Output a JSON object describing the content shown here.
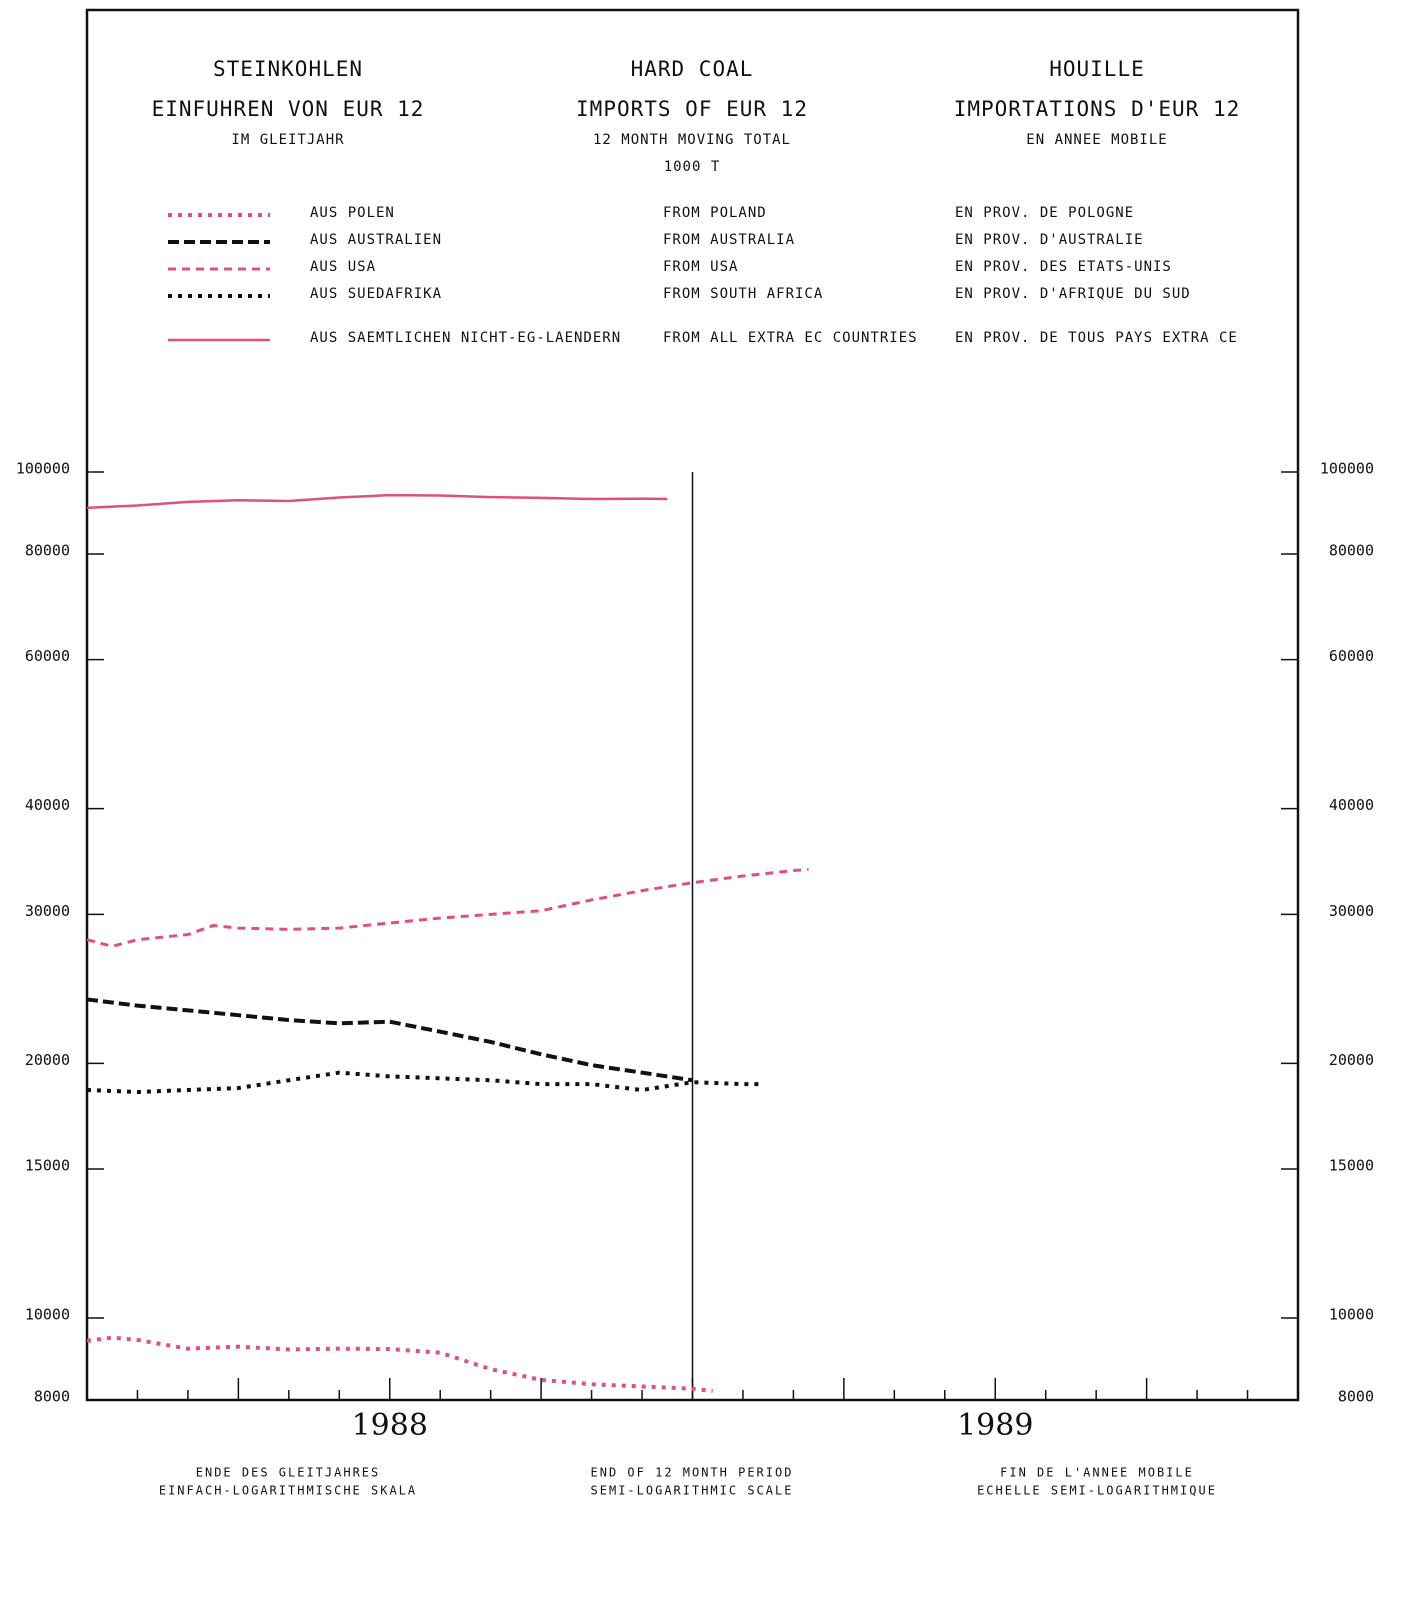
{
  "chart_data": {
    "type": "line",
    "header": [
      [
        "STEINKOHLEN",
        "EINFUHREN VON EUR 12",
        "IM GLEITJAHR"
      ],
      [
        "HARD COAL",
        "IMPORTS OF EUR 12",
        "12 MONTH MOVING TOTAL",
        "1000 T"
      ],
      [
        "HOUILLE",
        "IMPORTATIONS D'EUR 12",
        "EN ANNEE MOBILE"
      ]
    ],
    "footer": [
      [
        "ENDE DES GLEITJAHRES",
        "EINFACH-LOGARITHMISCHE SKALA"
      ],
      [
        "END OF 12 MONTH PERIOD",
        "SEMI-LOGARITHMIC SCALE"
      ],
      [
        "FIN DE L'ANNEE MOBILE",
        "ECHELLE SEMI-LOGARITHMIQUE"
      ]
    ],
    "log_scale": true,
    "xlim": [
      0,
      24
    ],
    "xticks": [
      1,
      2,
      3,
      4,
      5,
      6,
      7,
      8,
      9,
      10,
      11,
      12,
      13,
      14,
      15,
      16,
      17,
      18,
      19,
      20,
      21,
      22,
      23
    ],
    "year_labels": [
      {
        "value": 6,
        "label": "1988"
      },
      {
        "value": 18,
        "label": "1989"
      }
    ],
    "vline_x": 12,
    "ylim": [
      8000,
      100000
    ],
    "yticks": [
      8000,
      10000,
      15000,
      20000,
      30000,
      40000,
      60000,
      80000,
      100000
    ],
    "series": [
      {
        "names": [
          "AUS POLEN",
          "FROM POLAND",
          "EN PROV. DE POLOGNE"
        ],
        "color": "#e0507a",
        "style": "dotted",
        "x": [
          0,
          0.5,
          1,
          2,
          3,
          4,
          5,
          6,
          7,
          8,
          9,
          10,
          11,
          12,
          12.4
        ],
        "values": [
          9400,
          9480,
          9420,
          9200,
          9250,
          9180,
          9200,
          9190,
          9100,
          8700,
          8450,
          8350,
          8300,
          8250,
          8200
        ]
      },
      {
        "names": [
          "AUS AUSTRALIEN",
          "FROM AUSTRALIA",
          "EN PROV. D'AUSTRALIE"
        ],
        "color": "#111111",
        "style": "dashed",
        "x": [
          0,
          1,
          2,
          3,
          4,
          5,
          6,
          7,
          8,
          9,
          10,
          11,
          12
        ],
        "values": [
          23800,
          23400,
          23100,
          22800,
          22500,
          22300,
          22400,
          21800,
          21200,
          20500,
          19900,
          19500,
          19100
        ]
      },
      {
        "names": [
          "AUS USA",
          "FROM USA",
          "EN PROV. DES ETATS-UNIS"
        ],
        "color": "#e0507a",
        "style": "dashed-light",
        "x": [
          0,
          0.5,
          1,
          2,
          2.5,
          3,
          4,
          5,
          6,
          7,
          8,
          9,
          10,
          11,
          12,
          13,
          14,
          14.3
        ],
        "values": [
          28000,
          27500,
          28000,
          28400,
          29100,
          28900,
          28800,
          28900,
          29300,
          29700,
          30000,
          30300,
          31200,
          32000,
          32700,
          33300,
          33800,
          33900
        ]
      },
      {
        "names": [
          "AUS SUEDAFRIKA",
          "FROM SOUTH AFRICA",
          "EN PROV. D'AFRIQUE DU SUD"
        ],
        "color": "#111111",
        "style": "dotted",
        "x": [
          0,
          1,
          2,
          3,
          4,
          5,
          6,
          7,
          8,
          9,
          10,
          11,
          12,
          13,
          13.4
        ],
        "values": [
          18600,
          18500,
          18600,
          18700,
          19100,
          19500,
          19300,
          19200,
          19100,
          18900,
          18900,
          18600,
          19000,
          18900,
          18900
        ]
      },
      {
        "names": [
          "AUS SAEMTLICHEN NICHT-EG-LAENDERN",
          "FROM ALL EXTRA EC COUNTRIES",
          "EN PROV. DE TOUS PAYS EXTRA CE"
        ],
        "color": "#e0507a",
        "style": "solid",
        "x": [
          0,
          1,
          2,
          3,
          4,
          5,
          6,
          7,
          8,
          9,
          10,
          11,
          11.5
        ],
        "values": [
          90700,
          91300,
          92200,
          92600,
          92400,
          93300,
          93900,
          93800,
          93400,
          93200,
          92900,
          93000,
          92900
        ]
      }
    ]
  }
}
